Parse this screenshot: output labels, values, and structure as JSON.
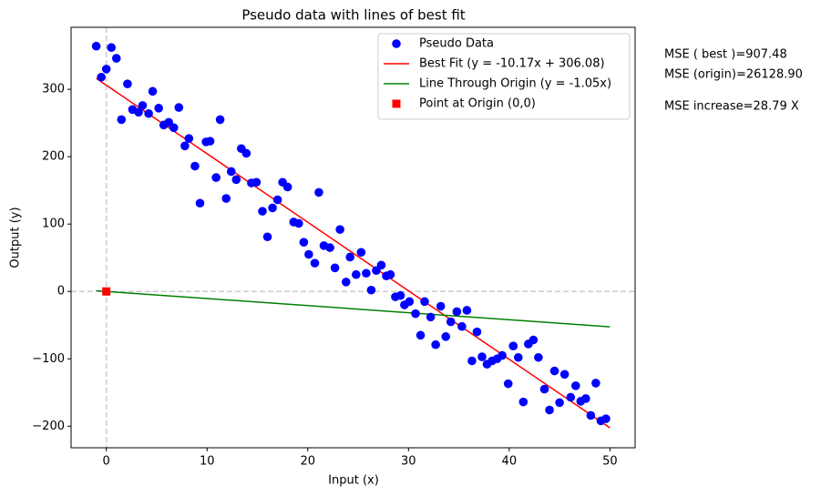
{
  "chart_data": {
    "type": "scatter",
    "title": "Pseudo data with lines of best fit",
    "x_label": "Input (x)",
    "y_label": "Output (y)",
    "xlim": [
      -3.5,
      52.5
    ],
    "ylim": [
      -232,
      392
    ],
    "xticks": [
      0,
      10,
      20,
      30,
      40,
      50
    ],
    "yticks": [
      {
        "value": -200,
        "label": "−200"
      },
      {
        "value": -100,
        "label": "−100"
      },
      0,
      100,
      200,
      300
    ],
    "reference_lines": {
      "x": 0,
      "y": 0,
      "color": "#cccccc"
    },
    "legend": "upper right",
    "series": [
      {
        "name": "Pseudo Data",
        "kind": "scatter",
        "marker": "circle",
        "color": "#0000ff",
        "x": [
          -1.0,
          -0.5,
          0.0,
          0.5,
          1.0,
          1.5,
          2.1,
          2.6,
          3.2,
          3.6,
          4.2,
          4.6,
          5.2,
          5.7,
          6.2,
          6.7,
          7.2,
          7.8,
          8.2,
          8.8,
          9.3,
          9.9,
          10.3,
          10.9,
          11.3,
          11.9,
          12.4,
          12.9,
          13.4,
          13.9,
          14.4,
          14.9,
          15.5,
          16.0,
          16.5,
          17.0,
          17.5,
          18.0,
          18.6,
          19.1,
          19.6,
          20.1,
          20.7,
          21.1,
          21.6,
          22.2,
          22.7,
          23.2,
          23.8,
          24.2,
          24.8,
          25.3,
          25.8,
          26.3,
          26.8,
          27.3,
          27.8,
          28.2,
          28.7,
          29.2,
          29.6,
          30.1,
          30.7,
          31.2,
          31.6,
          32.2,
          32.7,
          33.2,
          33.7,
          34.2,
          34.8,
          35.3,
          35.8,
          36.3,
          36.8,
          37.3,
          37.8,
          38.3,
          38.8,
          39.3,
          39.9,
          40.4,
          40.9,
          41.4,
          41.9,
          42.4,
          42.9,
          43.5,
          44.0,
          44.5,
          45.0,
          45.5,
          46.1,
          46.6,
          47.1,
          47.6,
          48.1,
          48.6,
          49.1,
          49.6
        ],
        "values": [
          364,
          318,
          330,
          362,
          346,
          255,
          308,
          270,
          266,
          276,
          264,
          297,
          272,
          247,
          251,
          243,
          273,
          216,
          227,
          186,
          131,
          222,
          223,
          169,
          255,
          138,
          178,
          166,
          212,
          205,
          161,
          162,
          119,
          81,
          124,
          136,
          162,
          155,
          103,
          101,
          73,
          55,
          42,
          147,
          68,
          65,
          35,
          92,
          14,
          51,
          25,
          58,
          27,
          2,
          31,
          39,
          23,
          25,
          -8,
          -6,
          -20,
          -15,
          -33,
          -65,
          -15,
          -38,
          -79,
          -22,
          -67,
          -45,
          -30,
          -52,
          -28,
          -103,
          -60,
          -97,
          -108,
          -103,
          -100,
          -95,
          -137,
          -81,
          -98,
          -164,
          -78,
          -72,
          -98,
          -145,
          -176,
          -118,
          -165,
          -123,
          -157,
          -140,
          -163,
          -159,
          -184,
          -136,
          -192,
          -189
        ]
      },
      {
        "name": "Best Fit (y = -10.17x + 306.08)",
        "kind": "line",
        "color": "#ff0000",
        "x": [
          -1,
          50
        ],
        "values": [
          316.25,
          -202.42
        ]
      },
      {
        "name": "Line Through Origin (y = -1.05x)",
        "kind": "line",
        "color": "#008000",
        "x": [
          -1,
          50
        ],
        "values": [
          1.05,
          -52.5
        ]
      },
      {
        "name": "Point at Origin (0,0)",
        "kind": "scatter",
        "marker": "square",
        "color": "#ff0000",
        "x": [
          0
        ],
        "values": [
          0
        ]
      }
    ],
    "annotations": [
      "MSE ( best )=907.48",
      "MSE (origin)=26128.90",
      "MSE increase=28.79 X"
    ]
  }
}
